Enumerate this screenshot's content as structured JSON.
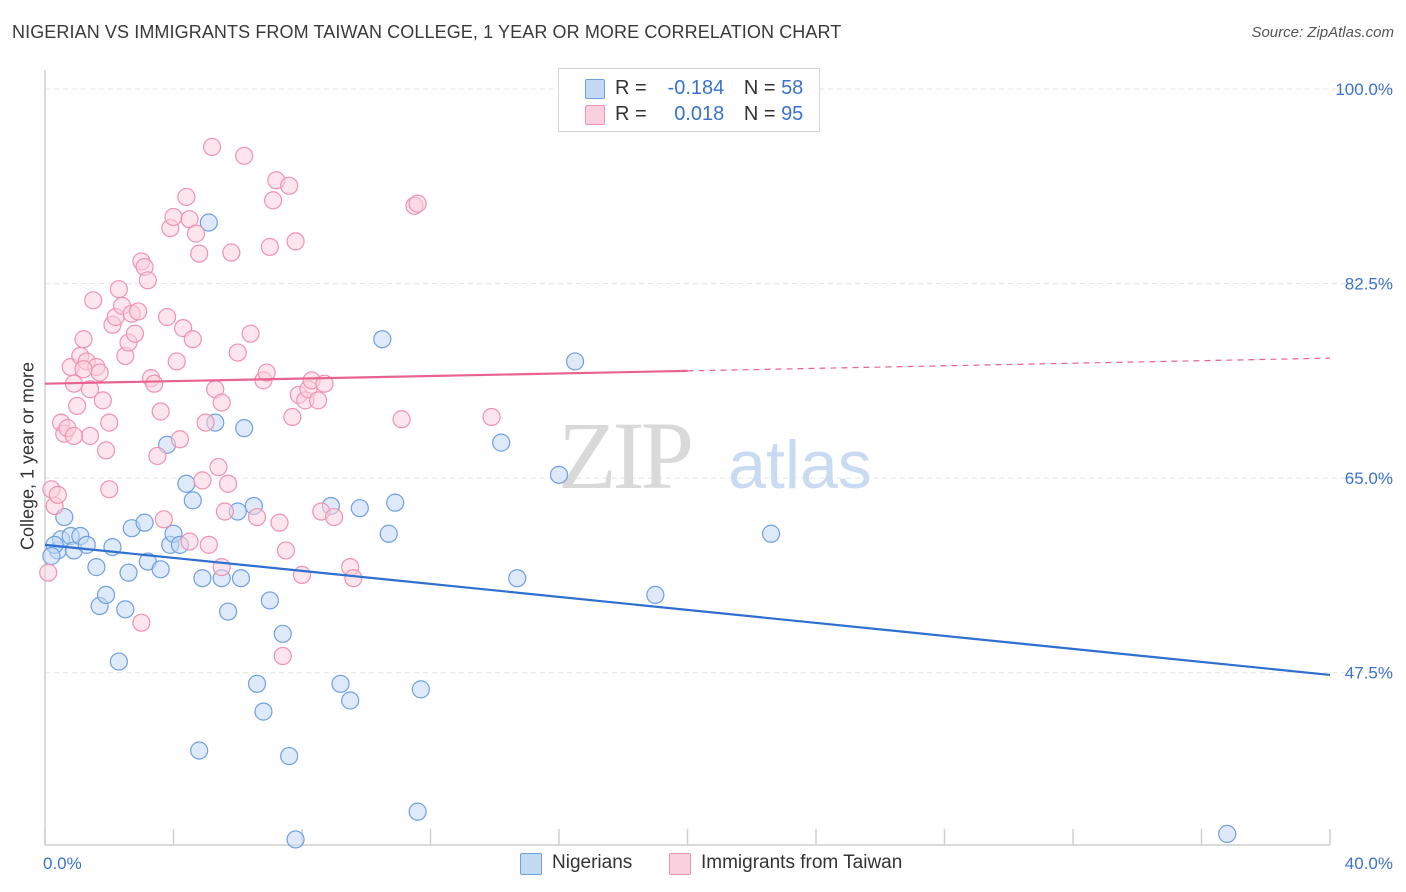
{
  "title": "NIGERIAN VS IMMIGRANTS FROM TAIWAN COLLEGE, 1 YEAR OR MORE CORRELATION CHART",
  "source": "Source: ZipAtlas.com",
  "watermark": {
    "zip": "ZIP",
    "atlas": "atlas"
  },
  "legend_stats": [
    {
      "r_label": "R =",
      "r_value": "-0.184",
      "n_label": "N =",
      "n_value": "58",
      "color": "#aecbf0"
    },
    {
      "r_label": "R =",
      "r_value": "0.018",
      "n_label": "N =",
      "n_value": "95",
      "color": "#f7c1d2"
    }
  ],
  "legend_series": [
    {
      "name": "Nigerians",
      "color": "#aecbf0"
    },
    {
      "name": "Immigrants from Taiwan",
      "color": "#f7c1d2"
    }
  ],
  "chart_data": {
    "type": "scatter",
    "xlabel": "",
    "ylabel": "College, 1 year or more",
    "xlim": [
      0,
      40
    ],
    "ylim": [
      32,
      101
    ],
    "x_tick_labels": [
      "0.0%",
      "40.0%"
    ],
    "y_ticks": [
      47.5,
      65.0,
      82.5,
      100.0
    ],
    "y_tick_labels": [
      "47.5%",
      "65.0%",
      "82.5%",
      "100.0%"
    ],
    "grid": true,
    "series": [
      {
        "name": "Nigerians",
        "color": "#6fa0e0",
        "fill": "#c3d9f4",
        "trend": {
          "x0": 0,
          "y0": 59.0,
          "x1": 40,
          "y1": 47.3,
          "color": "#2e6fd1",
          "dashed_from": null
        },
        "points": [
          [
            0.4,
            58.5
          ],
          [
            0.5,
            59.5
          ],
          [
            0.6,
            61.5
          ],
          [
            0.8,
            59.8
          ],
          [
            0.9,
            58.5
          ],
          [
            1.1,
            59.8
          ],
          [
            1.3,
            59.0
          ],
          [
            1.6,
            57.0
          ],
          [
            1.7,
            53.5
          ],
          [
            1.9,
            54.5
          ],
          [
            2.1,
            58.8
          ],
          [
            2.3,
            48.5
          ],
          [
            2.5,
            53.2
          ],
          [
            2.6,
            56.5
          ],
          [
            2.7,
            60.5
          ],
          [
            3.1,
            61.0
          ],
          [
            3.2,
            57.5
          ],
          [
            3.6,
            56.8
          ],
          [
            3.8,
            68.0
          ],
          [
            3.9,
            59.0
          ],
          [
            4.0,
            60.0
          ],
          [
            4.2,
            59.0
          ],
          [
            4.4,
            64.5
          ],
          [
            4.6,
            63.0
          ],
          [
            4.8,
            40.5
          ],
          [
            4.9,
            56.0
          ],
          [
            5.1,
            88.0
          ],
          [
            5.3,
            70.0
          ],
          [
            5.5,
            56.0
          ],
          [
            5.7,
            53.0
          ],
          [
            6.0,
            62.0
          ],
          [
            6.1,
            56.0
          ],
          [
            6.2,
            69.5
          ],
          [
            6.5,
            62.5
          ],
          [
            6.6,
            46.5
          ],
          [
            6.8,
            44.0
          ],
          [
            7.0,
            54.0
          ],
          [
            7.4,
            51.0
          ],
          [
            7.6,
            40.0
          ],
          [
            7.8,
            32.5
          ],
          [
            8.9,
            62.5
          ],
          [
            9.2,
            46.5
          ],
          [
            9.5,
            45.0
          ],
          [
            9.8,
            62.3
          ],
          [
            10.5,
            77.5
          ],
          [
            10.7,
            60.0
          ],
          [
            10.9,
            62.8
          ],
          [
            11.6,
            35.0
          ],
          [
            11.7,
            46.0
          ],
          [
            14.2,
            68.2
          ],
          [
            14.7,
            56.0
          ],
          [
            16.0,
            65.3
          ],
          [
            16.5,
            75.5
          ],
          [
            19.0,
            54.5
          ],
          [
            22.6,
            60.0
          ],
          [
            36.8,
            33.0
          ],
          [
            0.3,
            59.0
          ],
          [
            0.2,
            58.0
          ]
        ]
      },
      {
        "name": "Immigrants from Taiwan",
        "color": "#ef93b0",
        "fill": "#f9d0dd",
        "trend": {
          "x0": 0,
          "y0": 73.5,
          "x1": 40,
          "y1": 75.8,
          "color": "#e8638f",
          "dashed_from": 20
        },
        "points": [
          [
            0.1,
            56.5
          ],
          [
            0.2,
            64.0
          ],
          [
            0.3,
            62.5
          ],
          [
            0.4,
            63.5
          ],
          [
            0.5,
            70.0
          ],
          [
            0.6,
            69.0
          ],
          [
            0.7,
            69.5
          ],
          [
            0.8,
            75.0
          ],
          [
            0.9,
            73.5
          ],
          [
            1.0,
            71.5
          ],
          [
            1.1,
            76.0
          ],
          [
            1.2,
            77.5
          ],
          [
            1.3,
            75.5
          ],
          [
            1.4,
            68.8
          ],
          [
            1.5,
            81.0
          ],
          [
            1.6,
            75.0
          ],
          [
            1.7,
            74.5
          ],
          [
            1.8,
            72.0
          ],
          [
            1.9,
            67.5
          ],
          [
            2.0,
            70.0
          ],
          [
            2.1,
            78.8
          ],
          [
            2.2,
            79.5
          ],
          [
            2.3,
            82.0
          ],
          [
            2.4,
            80.5
          ],
          [
            2.5,
            76.0
          ],
          [
            2.6,
            77.2
          ],
          [
            2.7,
            79.8
          ],
          [
            2.8,
            78.0
          ],
          [
            2.9,
            80.0
          ],
          [
            3.0,
            84.5
          ],
          [
            3.1,
            84.0
          ],
          [
            3.2,
            82.8
          ],
          [
            3.3,
            74.0
          ],
          [
            3.4,
            73.5
          ],
          [
            3.5,
            67.0
          ],
          [
            3.6,
            71.0
          ],
          [
            3.7,
            61.3
          ],
          [
            3.8,
            79.5
          ],
          [
            3.9,
            87.5
          ],
          [
            4.0,
            88.5
          ],
          [
            4.1,
            75.5
          ],
          [
            4.2,
            68.5
          ],
          [
            4.3,
            78.5
          ],
          [
            4.4,
            90.3
          ],
          [
            4.5,
            88.3
          ],
          [
            4.6,
            77.5
          ],
          [
            4.7,
            87.0
          ],
          [
            4.8,
            85.2
          ],
          [
            4.9,
            64.8
          ],
          [
            5.0,
            70.0
          ],
          [
            5.1,
            59.0
          ],
          [
            5.2,
            94.8
          ],
          [
            5.3,
            73.0
          ],
          [
            5.4,
            66.0
          ],
          [
            5.5,
            71.8
          ],
          [
            5.6,
            62.0
          ],
          [
            5.7,
            64.5
          ],
          [
            5.8,
            85.3
          ],
          [
            6.0,
            76.3
          ],
          [
            6.2,
            94.0
          ],
          [
            6.4,
            78.0
          ],
          [
            6.6,
            61.5
          ],
          [
            6.8,
            73.8
          ],
          [
            7.0,
            85.8
          ],
          [
            7.1,
            90.0
          ],
          [
            7.2,
            91.8
          ],
          [
            7.3,
            61.0
          ],
          [
            7.4,
            49.0
          ],
          [
            7.5,
            58.5
          ],
          [
            7.6,
            91.3
          ],
          [
            7.7,
            70.5
          ],
          [
            7.8,
            86.3
          ],
          [
            7.9,
            72.5
          ],
          [
            8.0,
            56.3
          ],
          [
            8.1,
            72.0
          ],
          [
            8.2,
            73.0
          ],
          [
            8.3,
            73.8
          ],
          [
            8.6,
            62.0
          ],
          [
            8.7,
            73.5
          ],
          [
            9.0,
            61.5
          ],
          [
            9.5,
            57.0
          ],
          [
            9.6,
            56.0
          ],
          [
            11.1,
            70.3
          ],
          [
            11.5,
            89.5
          ],
          [
            11.6,
            89.7
          ],
          [
            13.9,
            70.5
          ],
          [
            5.5,
            57.0
          ],
          [
            3.0,
            52.0
          ],
          [
            2.0,
            64.0
          ],
          [
            1.4,
            73.0
          ],
          [
            0.9,
            68.8
          ],
          [
            1.2,
            74.8
          ],
          [
            6.9,
            74.5
          ],
          [
            8.5,
            72.0
          ],
          [
            4.5,
            59.3
          ]
        ]
      }
    ]
  }
}
